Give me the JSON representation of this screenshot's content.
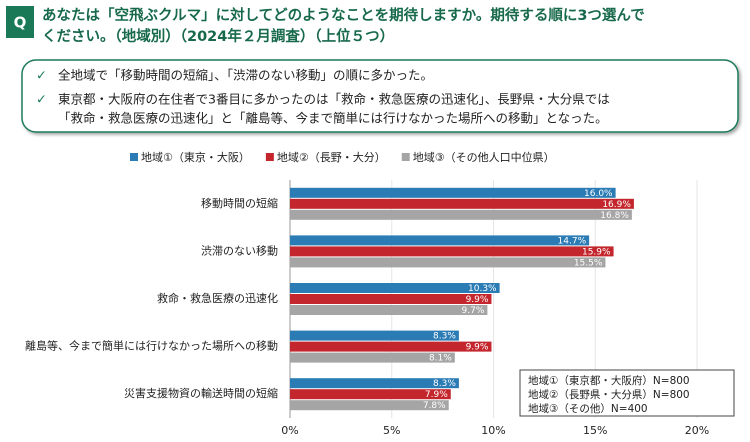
{
  "header": {
    "badge": "Q",
    "title_lines": [
      "あなたは「空飛ぶクルマ」に対してどのようなことを期待しますか。期待する順に3つ選んで",
      "ください。（地域別）（2024年２月調査）（上位５つ）"
    ]
  },
  "summary": {
    "items": [
      [
        "全地域で「移動時間の短縮」、「渋滞のない移動」の順に多かった。"
      ],
      [
        "東京都・大阪府の在住者で3番目に多かったのは「救命・救急医療の迅速化」、長野県・大分県では",
        "「救命・救急医療の迅速化」と「離島等、今まで簡単には行けなかった場所への移動」となった。"
      ]
    ]
  },
  "note": {
    "lines": [
      "地域①（東京都・大阪府）N=800",
      "地域②（長野県・大分県）N=800",
      "地域③（その他）N=400"
    ]
  },
  "chart_data": {
    "type": "hbar",
    "categories": [
      "移動時間の短縮",
      "渋滞のない移動",
      "救命・救急医療の迅速化",
      "離島等、今まで簡単には行けなかった場所への移動",
      "災害支援物資の輸送時間の短縮"
    ],
    "series": [
      {
        "name": "地域①（東京・大阪）",
        "color": "#2b7bb5",
        "values": [
          16.0,
          14.7,
          10.3,
          8.3,
          8.3
        ],
        "value_labels": [
          "16.0%",
          "14.7%",
          "10.3%",
          "8.3%",
          "8.3%"
        ]
      },
      {
        "name": "地域②（長野・大分）",
        "color": "#c3262c",
        "values": [
          16.9,
          15.9,
          9.9,
          9.9,
          7.9
        ],
        "value_labels": [
          "16.9%",
          "15.9%",
          "9.9%",
          "9.9%",
          "7.9%"
        ]
      },
      {
        "name": "地域③（その他人口中位県）",
        "color": "#a5a5a5",
        "values": [
          16.8,
          15.5,
          9.7,
          8.1,
          7.8
        ],
        "value_labels": [
          "16.8%",
          "15.5%",
          "9.7%",
          "8.1%",
          "7.8%"
        ]
      }
    ],
    "xlim": [
      0,
      20
    ],
    "xticks": [
      {
        "value": 0,
        "label": "0%"
      },
      {
        "value": 5,
        "label": "5%"
      },
      {
        "value": 10,
        "label": "10%"
      },
      {
        "value": 15,
        "label": "15%"
      },
      {
        "value": 20,
        "label": "20%"
      }
    ],
    "grid": true
  }
}
